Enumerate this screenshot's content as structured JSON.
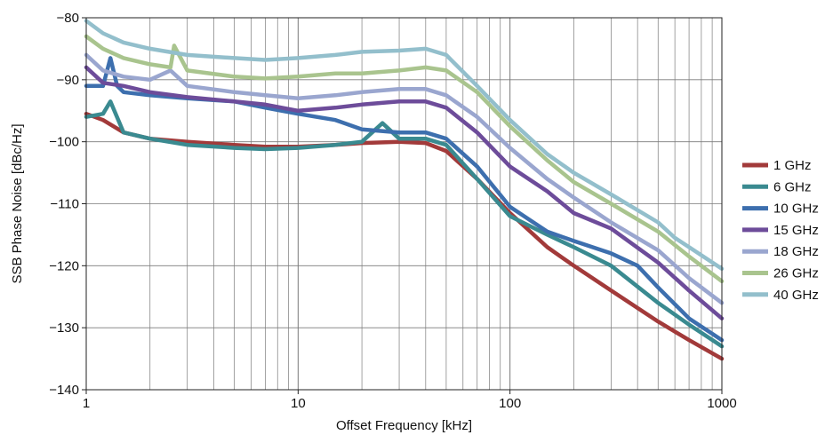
{
  "chart_data": {
    "type": "line",
    "title": "",
    "xlabel": "Offset Frequency [kHz]",
    "ylabel": "SSB Phase Noise [dBc/Hz]",
    "xscale": "log",
    "xlim": [
      1,
      1000
    ],
    "ylim": [
      -140,
      -80
    ],
    "grid": true,
    "legend_position": "right",
    "x_ticks": [
      {
        "value": 1,
        "label": "1"
      },
      {
        "value": 10,
        "label": "10"
      },
      {
        "value": 100,
        "label": "100"
      },
      {
        "value": 1000,
        "label": "1000"
      }
    ],
    "y_ticks": [
      {
        "value": -80,
        "label": "−80"
      },
      {
        "value": -90,
        "label": "−90"
      },
      {
        "value": -100,
        "label": "−100"
      },
      {
        "value": -110,
        "label": "−110"
      },
      {
        "value": -120,
        "label": "−120"
      },
      {
        "value": -130,
        "label": "−130"
      },
      {
        "value": -140,
        "label": "−140"
      }
    ],
    "series": [
      {
        "name": "1 GHz",
        "color": "#a23a3a",
        "x": [
          1,
          1.2,
          1.5,
          2,
          3,
          5,
          7,
          10,
          15,
          20,
          30,
          40,
          50,
          70,
          100,
          150,
          200,
          300,
          500,
          700,
          1000
        ],
        "y": [
          -95.5,
          -96.5,
          -98.5,
          -99.5,
          -100,
          -100.5,
          -100.8,
          -100.8,
          -100.5,
          -100.2,
          -100,
          -100.2,
          -101.5,
          -106,
          -111.5,
          -117,
          -120,
          -124,
          -129,
          -132,
          -135
        ]
      },
      {
        "name": "6 GHz",
        "color": "#3a8a90",
        "x": [
          1,
          1.2,
          1.3,
          1.5,
          2,
          3,
          5,
          7,
          10,
          15,
          20,
          25,
          30,
          40,
          50,
          70,
          100,
          150,
          200,
          300,
          500,
          700,
          1000
        ],
        "y": [
          -96,
          -95.5,
          -93.5,
          -98.5,
          -99.5,
          -100.5,
          -101,
          -101.2,
          -101,
          -100.5,
          -100,
          -97,
          -99.5,
          -99.5,
          -100.5,
          -106,
          -112,
          -115,
          -117,
          -120,
          -126,
          -129.5,
          -133
        ]
      },
      {
        "name": "10 GHz",
        "color": "#3d6fae",
        "x": [
          1,
          1.2,
          1.3,
          1.4,
          1.5,
          2,
          3,
          5,
          7,
          10,
          15,
          20,
          30,
          40,
          50,
          70,
          100,
          150,
          200,
          300,
          400,
          500,
          700,
          1000
        ],
        "y": [
          -91,
          -91,
          -86.5,
          -91,
          -92,
          -92.5,
          -93,
          -93.5,
          -94.5,
          -95.5,
          -96.5,
          -98,
          -98.5,
          -98.5,
          -99.5,
          -104,
          -110.5,
          -114.5,
          -116,
          -118,
          -120,
          -123.5,
          -128.5,
          -132
        ]
      },
      {
        "name": "15 GHz",
        "color": "#6d4c9a",
        "x": [
          1,
          1.2,
          1.5,
          2,
          3,
          5,
          7,
          10,
          15,
          20,
          30,
          40,
          50,
          70,
          100,
          150,
          200,
          300,
          500,
          700,
          1000
        ],
        "y": [
          -88,
          -90.5,
          -91,
          -92,
          -92.8,
          -93.5,
          -94,
          -95,
          -94.5,
          -94,
          -93.5,
          -93.5,
          -94.5,
          -98.5,
          -104,
          -108,
          -111.5,
          -114,
          -119.5,
          -124,
          -128.5
        ]
      },
      {
        "name": "18 GHz",
        "color": "#9aa6cf",
        "x": [
          1,
          1.2,
          1.5,
          2,
          2.5,
          3,
          5,
          7,
          10,
          15,
          20,
          30,
          40,
          50,
          70,
          100,
          150,
          200,
          300,
          500,
          700,
          1000
        ],
        "y": [
          -86,
          -88.5,
          -89.5,
          -90,
          -88.5,
          -91,
          -92,
          -92.5,
          -93,
          -92.5,
          -92,
          -91.5,
          -91.5,
          -92.5,
          -96,
          -101,
          -106,
          -109,
          -113,
          -117.5,
          -122,
          -126
        ]
      },
      {
        "name": "26 GHz",
        "color": "#a9c48e",
        "x": [
          1,
          1.2,
          1.5,
          2,
          2.5,
          2.6,
          3,
          5,
          7,
          10,
          15,
          20,
          30,
          40,
          50,
          70,
          100,
          150,
          200,
          300,
          500,
          700,
          1000
        ],
        "y": [
          -83,
          -85,
          -86.5,
          -87.5,
          -88,
          -84.5,
          -88.5,
          -89.5,
          -89.8,
          -89.5,
          -89,
          -89,
          -88.5,
          -88,
          -88.5,
          -92,
          -97.5,
          -103,
          -106.5,
          -110,
          -114.5,
          -118.5,
          -122.5
        ]
      },
      {
        "name": "40 GHz",
        "color": "#93bfcc",
        "x": [
          1,
          1.2,
          1.5,
          2,
          3,
          5,
          7,
          10,
          15,
          20,
          30,
          40,
          50,
          70,
          100,
          150,
          200,
          300,
          500,
          600,
          700,
          1000
        ],
        "y": [
          -80.5,
          -82.5,
          -84,
          -85,
          -86,
          -86.5,
          -86.8,
          -86.5,
          -86,
          -85.5,
          -85.3,
          -85,
          -86,
          -91,
          -96.5,
          -102,
          -105,
          -108.5,
          -113,
          -115.5,
          -117,
          -120.5
        ]
      }
    ]
  }
}
